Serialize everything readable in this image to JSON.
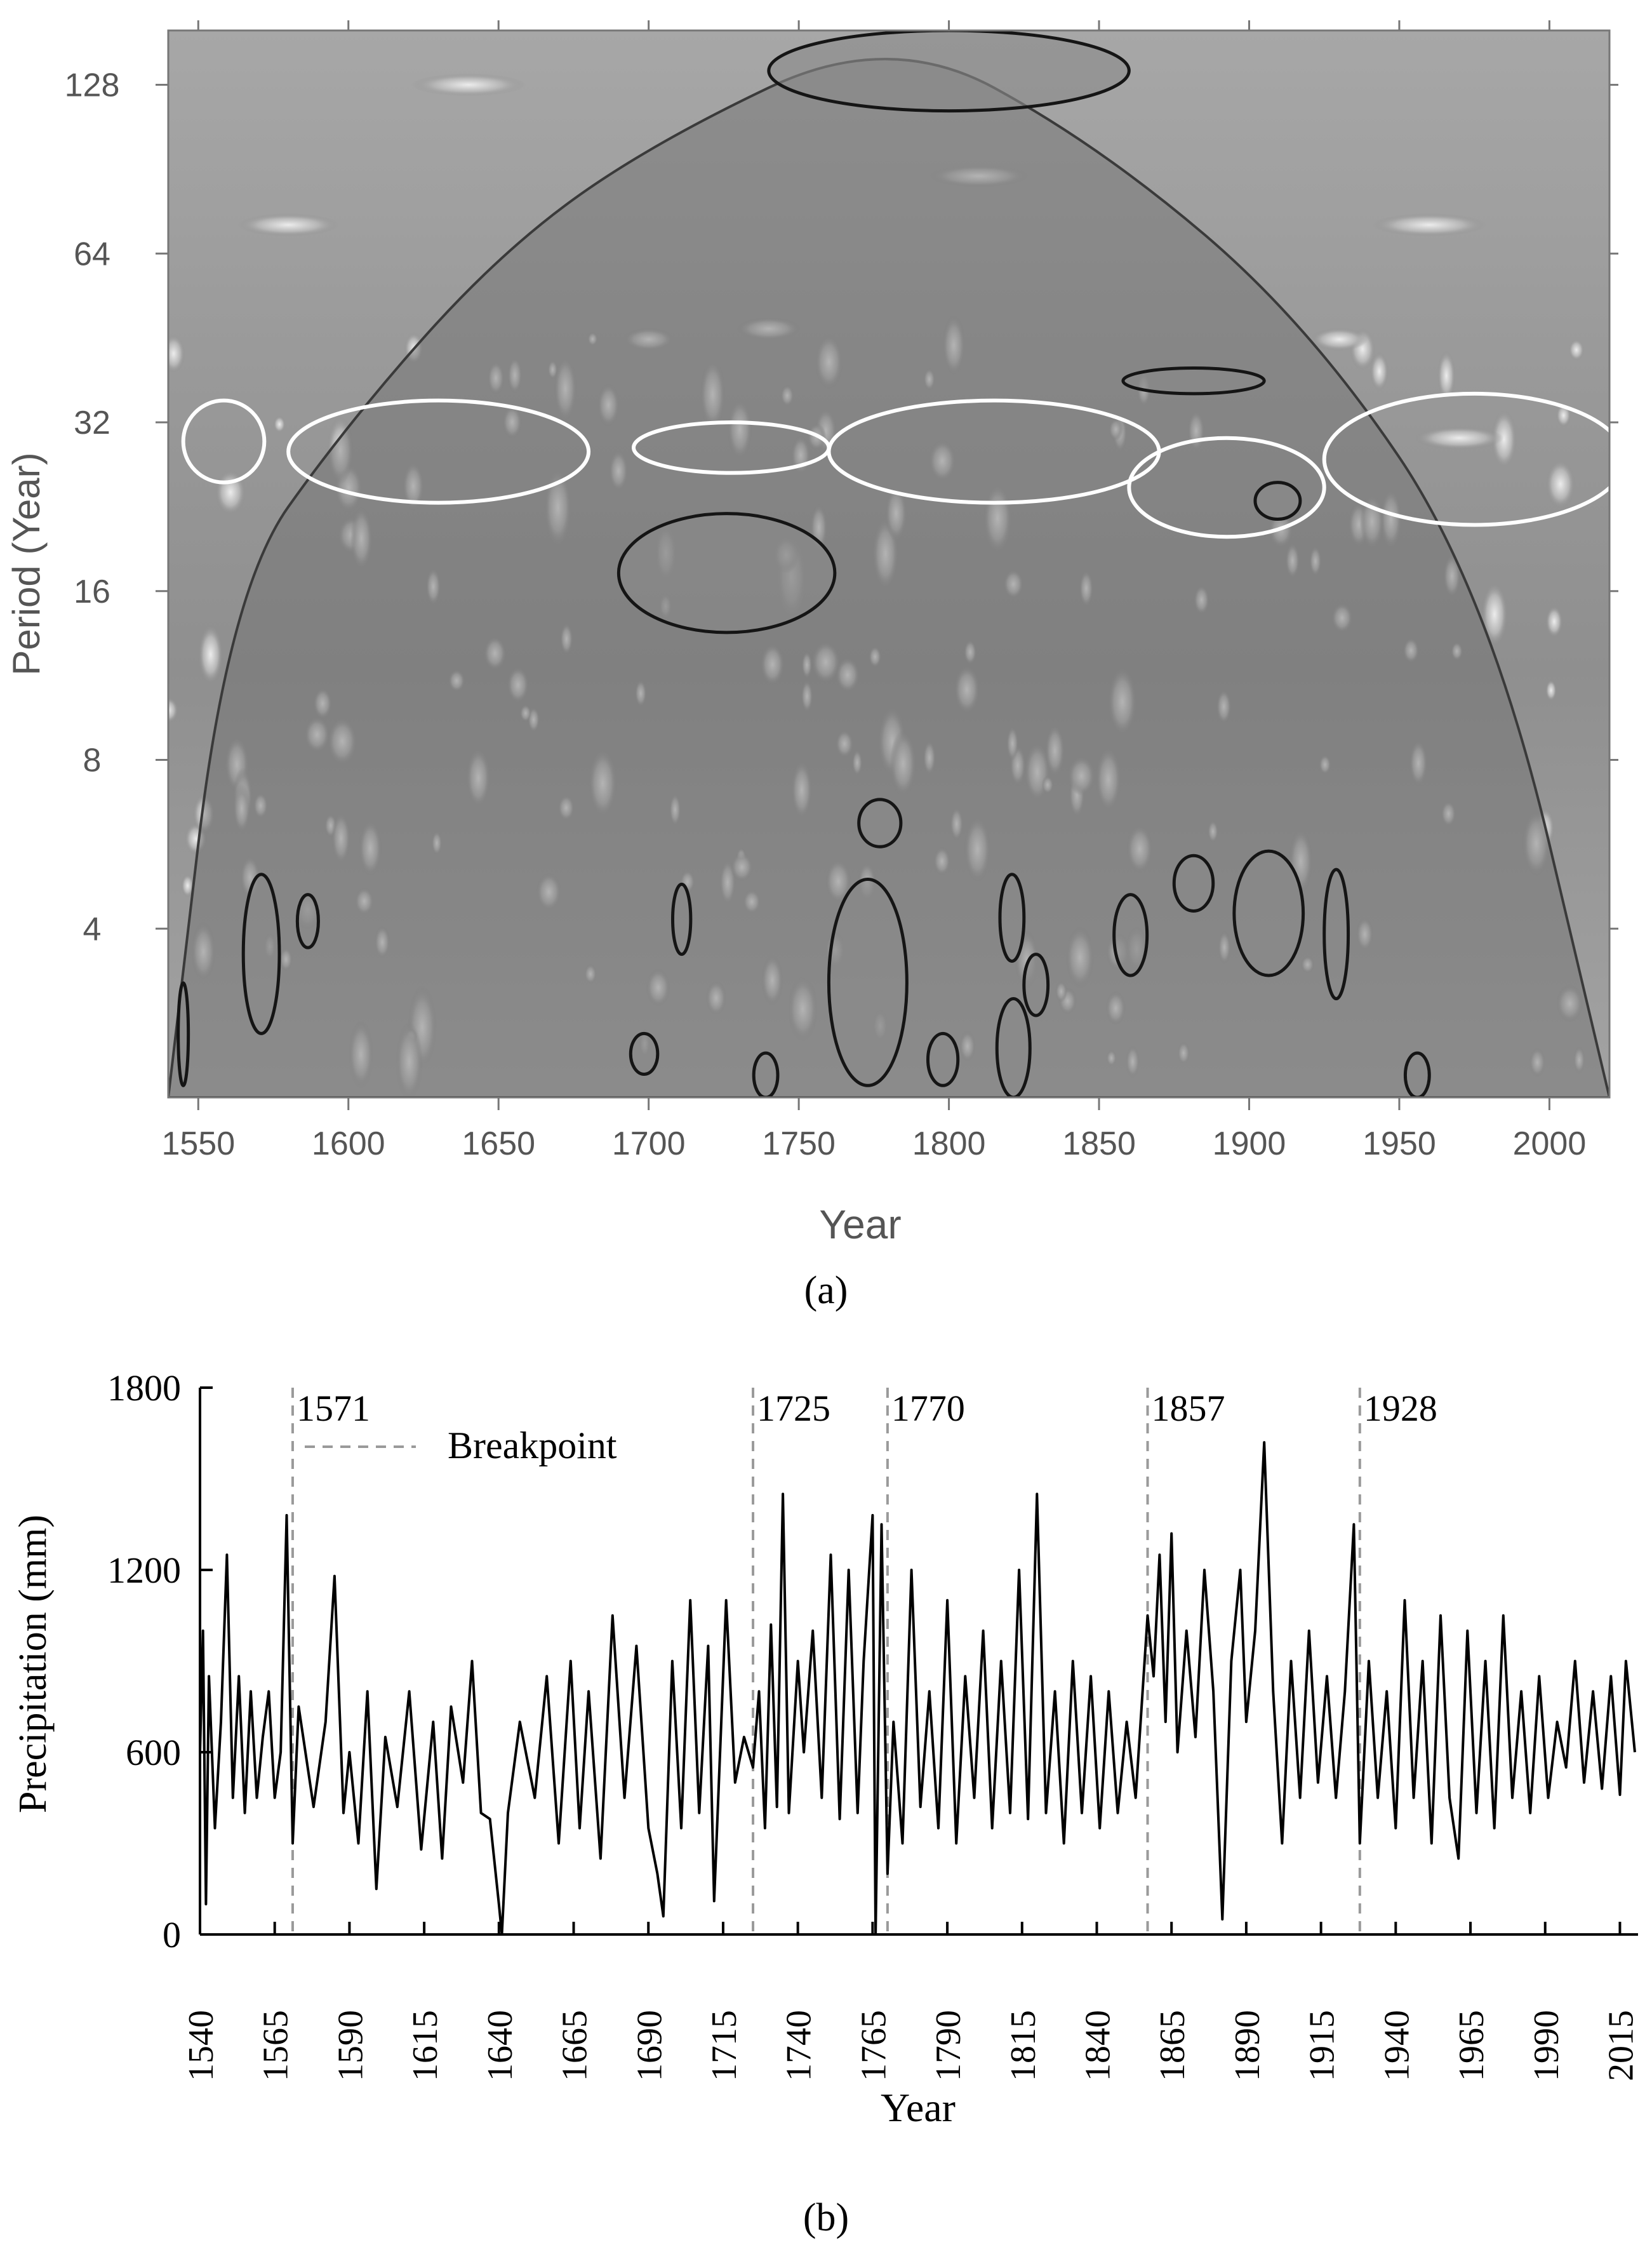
{
  "panel_a_label": "(a)",
  "panel_b_label": "(b)",
  "chart_data": [
    {
      "panel": "a",
      "type": "heatmap",
      "xlabel": "Year",
      "ylabel": "Period (Year)",
      "xticks": [
        1550,
        1600,
        1650,
        1700,
        1750,
        1800,
        1850,
        1900,
        1950,
        2000
      ],
      "yticks": [
        4,
        8,
        16,
        32,
        64,
        128
      ],
      "xlim": [
        1540,
        2020
      ],
      "ylim": [
        2,
        160
      ],
      "yscale": "log2",
      "cone_of_influence": [
        [
          1540,
          2
        ],
        [
          1560,
          16
        ],
        [
          1600,
          32
        ],
        [
          1650,
          64
        ],
        [
          1700,
          100
        ],
        [
          1780,
          160
        ],
        [
          1850,
          100
        ],
        [
          1920,
          48
        ],
        [
          1980,
          16
        ],
        [
          2020,
          2
        ]
      ],
      "significant_regions": [
        {
          "x": [
            1544,
            1546
          ],
          "period": [
            2.1,
            3.2
          ]
        },
        {
          "x": [
            1565,
            1577
          ],
          "period": [
            2.6,
            5.0
          ]
        },
        {
          "x": [
            1583,
            1590
          ],
          "period": [
            3.7,
            4.6
          ]
        },
        {
          "x": [
            1690,
            1762
          ],
          "period": [
            13.5,
            22.0
          ]
        },
        {
          "x": [
            1694,
            1703
          ],
          "period": [
            2.2,
            2.6
          ]
        },
        {
          "x": [
            1708,
            1714
          ],
          "period": [
            3.6,
            4.8
          ]
        },
        {
          "x": [
            1735,
            1743
          ],
          "period": [
            2.0,
            2.4
          ]
        },
        {
          "x": [
            1760,
            1786
          ],
          "period": [
            2.1,
            4.9
          ]
        },
        {
          "x": [
            1770,
            1784
          ],
          "period": [
            5.6,
            6.8
          ]
        },
        {
          "x": [
            1793,
            1803
          ],
          "period": [
            2.1,
            2.6
          ]
        },
        {
          "x": [
            1816,
            1827
          ],
          "period": [
            2.0,
            3.0
          ]
        },
        {
          "x": [
            1817,
            1825
          ],
          "period": [
            3.5,
            5.0
          ]
        },
        {
          "x": [
            1825,
            1833
          ],
          "period": [
            2.8,
            3.6
          ]
        },
        {
          "x": [
            1855,
            1866
          ],
          "period": [
            3.3,
            4.6
          ]
        },
        {
          "x": [
            1858,
            1905
          ],
          "period": [
            36,
            40
          ]
        },
        {
          "x": [
            1875,
            1888
          ],
          "period": [
            4.3,
            5.4
          ]
        },
        {
          "x": [
            1895,
            1918
          ],
          "period": [
            3.3,
            5.5
          ]
        },
        {
          "x": [
            1902,
            1917
          ],
          "period": [
            21.5,
            25
          ]
        },
        {
          "x": [
            1925,
            1933
          ],
          "period": [
            3.0,
            5.1
          ]
        },
        {
          "x": [
            1952,
            1960
          ],
          "period": [
            2.0,
            2.4
          ]
        },
        {
          "x": [
            1740,
            1860
          ],
          "period": [
            115,
            160
          ]
        }
      ],
      "highlighted_bands": [
        {
          "x": [
            1545,
            1572
          ],
          "period": [
            25,
            35
          ]
        },
        {
          "x": [
            1580,
            1680
          ],
          "period": [
            23,
            35
          ]
        },
        {
          "x": [
            1695,
            1760
          ],
          "period": [
            26,
            32
          ]
        },
        {
          "x": [
            1760,
            1870
          ],
          "period": [
            23,
            35
          ]
        },
        {
          "x": [
            1860,
            1925
          ],
          "period": [
            20,
            30
          ]
        },
        {
          "x": [
            1925,
            2025
          ],
          "period": [
            21,
            36
          ]
        }
      ]
    },
    {
      "panel": "b",
      "type": "line",
      "xlabel": "Year",
      "ylabel": "Precipitation (mm)",
      "xlim": [
        1540,
        2020
      ],
      "ylim": [
        0,
        1800
      ],
      "xticks": [
        1540,
        1565,
        1590,
        1615,
        1640,
        1665,
        1690,
        1715,
        1740,
        1765,
        1790,
        1815,
        1840,
        1865,
        1890,
        1915,
        1940,
        1965,
        1990,
        2015
      ],
      "yticks": [
        0,
        600,
        1200,
        1800
      ],
      "legend": [
        {
          "label": "Breakpoint",
          "style": "dashed",
          "color": "#9a9a9a"
        }
      ],
      "breakpoints": [
        1571,
        1725,
        1770,
        1857,
        1928
      ],
      "series": [
        {
          "x_start": 1540,
          "x_end": 2020,
          "anchors": [
            [
              1540,
              600
            ],
            [
              1541,
              1000
            ],
            [
              1542,
              100
            ],
            [
              1543,
              850
            ],
            [
              1545,
              350
            ],
            [
              1547,
              700
            ],
            [
              1549,
              1250
            ],
            [
              1551,
              450
            ],
            [
              1553,
              850
            ],
            [
              1555,
              400
            ],
            [
              1557,
              800
            ],
            [
              1559,
              450
            ],
            [
              1561,
              650
            ],
            [
              1563,
              800
            ],
            [
              1565,
              450
            ],
            [
              1567,
              600
            ],
            [
              1569,
              1380
            ],
            [
              1571,
              300
            ],
            [
              1573,
              750
            ],
            [
              1578,
              420
            ],
            [
              1582,
              700
            ],
            [
              1585,
              1180
            ],
            [
              1588,
              400
            ],
            [
              1590,
              600
            ],
            [
              1593,
              300
            ],
            [
              1596,
              800
            ],
            [
              1599,
              150
            ],
            [
              1602,
              650
            ],
            [
              1606,
              420
            ],
            [
              1610,
              800
            ],
            [
              1614,
              280
            ],
            [
              1618,
              700
            ],
            [
              1621,
              250
            ],
            [
              1624,
              750
            ],
            [
              1628,
              500
            ],
            [
              1631,
              900
            ],
            [
              1634,
              400
            ],
            [
              1637,
              380
            ],
            [
              1640,
              100
            ],
            [
              1641,
              0
            ],
            [
              1643,
              400
            ],
            [
              1647,
              700
            ],
            [
              1652,
              450
            ],
            [
              1656,
              850
            ],
            [
              1660,
              300
            ],
            [
              1664,
              900
            ],
            [
              1667,
              350
            ],
            [
              1670,
              800
            ],
            [
              1674,
              250
            ],
            [
              1678,
              1050
            ],
            [
              1682,
              450
            ],
            [
              1686,
              950
            ],
            [
              1690,
              350
            ],
            [
              1693,
              200
            ],
            [
              1695,
              60
            ],
            [
              1698,
              900
            ],
            [
              1701,
              350
            ],
            [
              1704,
              1100
            ],
            [
              1707,
              400
            ],
            [
              1710,
              950
            ],
            [
              1712,
              110
            ],
            [
              1716,
              1100
            ],
            [
              1719,
              500
            ],
            [
              1722,
              650
            ],
            [
              1725,
              550
            ],
            [
              1727,
              800
            ],
            [
              1729,
              350
            ],
            [
              1731,
              1020
            ],
            [
              1733,
              420
            ],
            [
              1735,
              1450
            ],
            [
              1737,
              400
            ],
            [
              1740,
              900
            ],
            [
              1742,
              600
            ],
            [
              1745,
              1000
            ],
            [
              1748,
              450
            ],
            [
              1751,
              1250
            ],
            [
              1754,
              380
            ],
            [
              1757,
              1200
            ],
            [
              1760,
              400
            ],
            [
              1762,
              900
            ],
            [
              1765,
              1380
            ],
            [
              1766,
              0
            ],
            [
              1768,
              1350
            ],
            [
              1770,
              200
            ],
            [
              1772,
              700
            ],
            [
              1775,
              300
            ],
            [
              1778,
              1200
            ],
            [
              1781,
              420
            ],
            [
              1784,
              800
            ],
            [
              1787,
              350
            ],
            [
              1790,
              1100
            ],
            [
              1793,
              300
            ],
            [
              1796,
              850
            ],
            [
              1799,
              450
            ],
            [
              1802,
              1000
            ],
            [
              1805,
              350
            ],
            [
              1808,
              900
            ],
            [
              1811,
              400
            ],
            [
              1814,
              1200
            ],
            [
              1817,
              380
            ],
            [
              1820,
              1450
            ],
            [
              1823,
              400
            ],
            [
              1826,
              800
            ],
            [
              1829,
              300
            ],
            [
              1832,
              900
            ],
            [
              1835,
              400
            ],
            [
              1838,
              850
            ],
            [
              1841,
              350
            ],
            [
              1844,
              800
            ],
            [
              1847,
              400
            ],
            [
              1850,
              700
            ],
            [
              1853,
              450
            ],
            [
              1857,
              1050
            ],
            [
              1859,
              850
            ],
            [
              1861,
              1250
            ],
            [
              1863,
              700
            ],
            [
              1865,
              1320
            ],
            [
              1867,
              600
            ],
            [
              1870,
              1000
            ],
            [
              1873,
              650
            ],
            [
              1876,
              1200
            ],
            [
              1879,
              800
            ],
            [
              1882,
              50
            ],
            [
              1885,
              900
            ],
            [
              1888,
              1200
            ],
            [
              1890,
              700
            ],
            [
              1893,
              1000
            ],
            [
              1896,
              1620
            ],
            [
              1899,
              800
            ],
            [
              1902,
              300
            ],
            [
              1905,
              900
            ],
            [
              1908,
              450
            ],
            [
              1911,
              1000
            ],
            [
              1914,
              500
            ],
            [
              1917,
              850
            ],
            [
              1920,
              450
            ],
            [
              1923,
              800
            ],
            [
              1926,
              1350
            ],
            [
              1928,
              300
            ],
            [
              1931,
              900
            ],
            [
              1934,
              450
            ],
            [
              1937,
              800
            ],
            [
              1940,
              350
            ],
            [
              1943,
              1100
            ],
            [
              1946,
              450
            ],
            [
              1949,
              900
            ],
            [
              1952,
              300
            ],
            [
              1955,
              1050
            ],
            [
              1958,
              450
            ],
            [
              1961,
              250
            ],
            [
              1964,
              1000
            ],
            [
              1967,
              400
            ],
            [
              1970,
              900
            ],
            [
              1973,
              350
            ],
            [
              1976,
              1050
            ],
            [
              1979,
              450
            ],
            [
              1982,
              800
            ],
            [
              1985,
              400
            ],
            [
              1988,
              850
            ],
            [
              1991,
              450
            ],
            [
              1994,
              700
            ],
            [
              1997,
              550
            ],
            [
              2000,
              900
            ],
            [
              2003,
              500
            ],
            [
              2006,
              800
            ],
            [
              2009,
              480
            ],
            [
              2012,
              850
            ],
            [
              2015,
              460
            ],
            [
              2017,
              900
            ],
            [
              2020,
              600
            ]
          ]
        }
      ]
    }
  ]
}
